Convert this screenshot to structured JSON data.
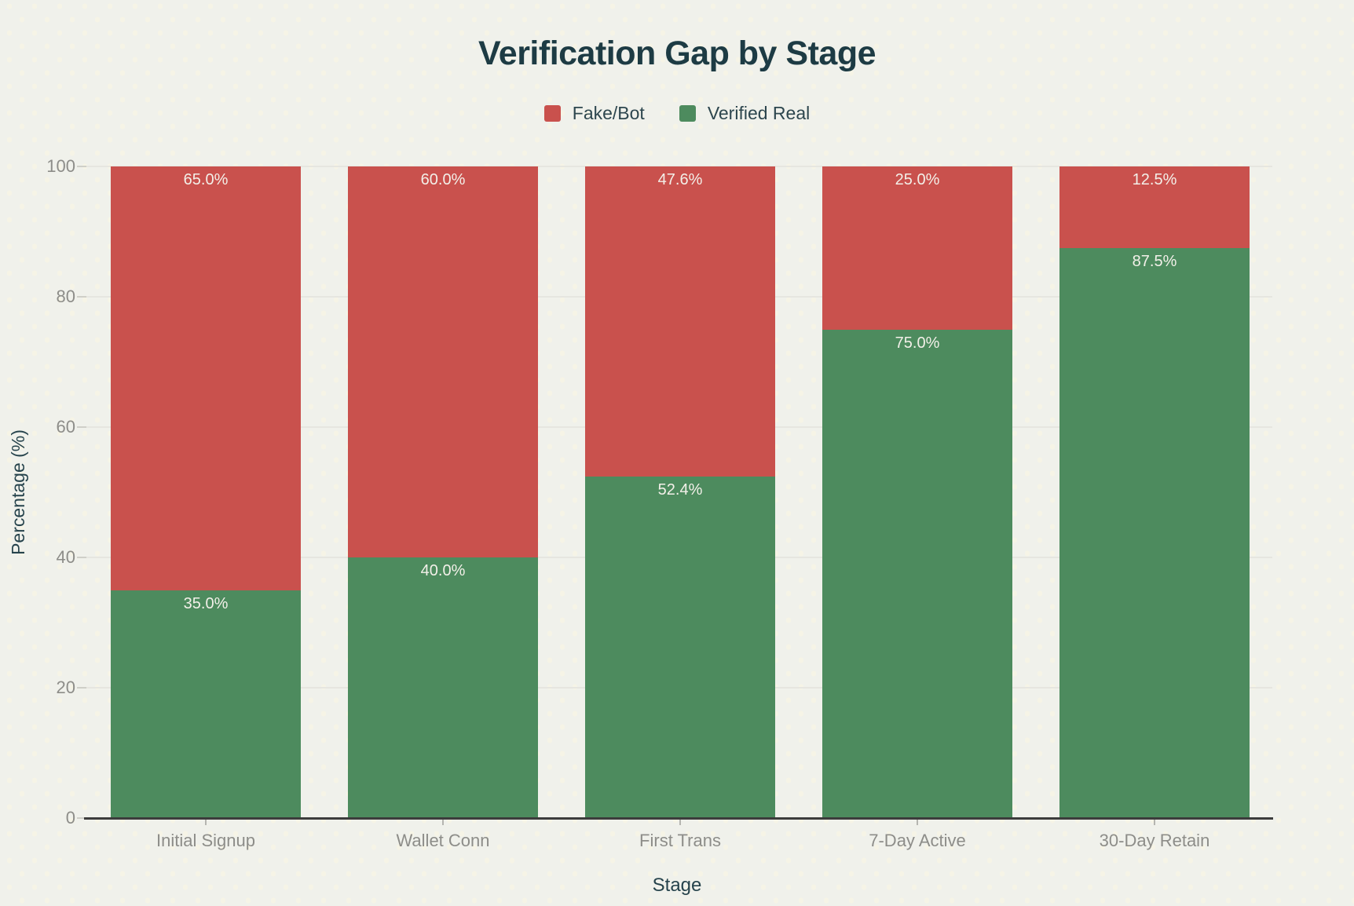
{
  "title": "Verification Gap by Stage",
  "legend": {
    "items": [
      {
        "label": "Fake/Bot",
        "color": "#c9514d"
      },
      {
        "label": "Verified Real",
        "color": "#4d8b5e"
      }
    ]
  },
  "chart_data": {
    "type": "bar",
    "stacked": true,
    "orientation": "vertical",
    "title": "Verification Gap by Stage",
    "xlabel": "Stage",
    "ylabel": "Percentage (%)",
    "ylim": [
      0,
      100
    ],
    "yticks": [
      0,
      20,
      40,
      60,
      80,
      100
    ],
    "grid": true,
    "legend_position": "top",
    "categories": [
      "Initial Signup",
      "Wallet Conn",
      "First Trans",
      "7-Day Active",
      "30-Day Retain"
    ],
    "series": [
      {
        "name": "Verified Real",
        "color": "#4d8b5e",
        "label_color": "#f3f0e9",
        "values": [
          35.0,
          40.0,
          52.4,
          75.0,
          87.5
        ],
        "labels": [
          "35.0%",
          "40.0%",
          "52.4%",
          "75.0%",
          "87.5%"
        ]
      },
      {
        "name": "Fake/Bot",
        "color": "#c9514d",
        "label_color": "#f3f0e9",
        "values": [
          65.0,
          60.0,
          47.6,
          25.0,
          12.5
        ],
        "labels": [
          "65.0%",
          "60.0%",
          "47.6%",
          "25.0%",
          "12.5%"
        ]
      }
    ]
  }
}
